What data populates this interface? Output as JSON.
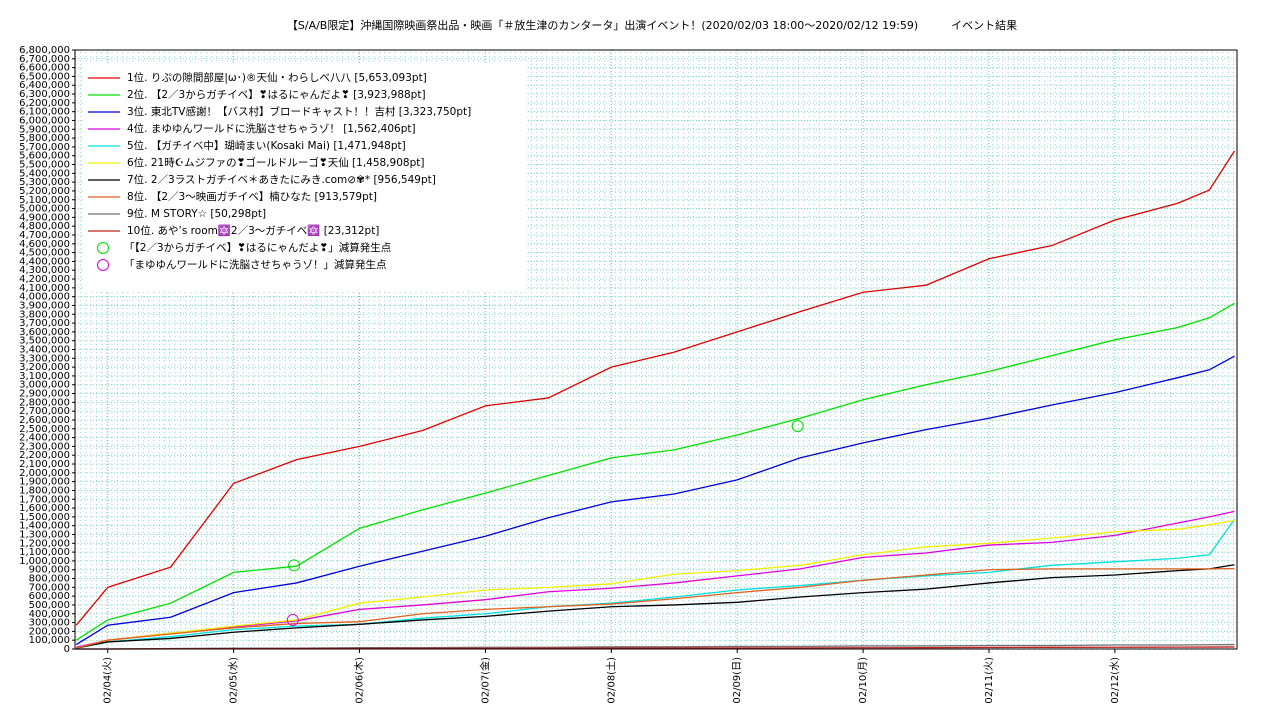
{
  "chart_data": {
    "type": "line",
    "title": "【S/A/B限定】沖縄国際映画祭出品・映画「＃放生津のカンタータ」出演イベント！(2020/02/03 18:00～2020/02/12 19:59)　　　イベント結果",
    "x": [
      3.75,
      4,
      4.5,
      5,
      5.5,
      6,
      6.5,
      7,
      7.5,
      8,
      8.5,
      9,
      9.5,
      10,
      10.5,
      11,
      11.5,
      12,
      12.5,
      12.75,
      12.95
    ],
    "xlim": [
      3.74,
      12.97
    ],
    "xticks": [
      {
        "value": 4,
        "label": "02/04(火)"
      },
      {
        "value": 5,
        "label": "02/05(水)"
      },
      {
        "value": 6,
        "label": "02/06(木)"
      },
      {
        "value": 7,
        "label": "02/07(金)"
      },
      {
        "value": 8,
        "label": "02/08(土)"
      },
      {
        "value": 9,
        "label": "02/09(日)"
      },
      {
        "value": 10,
        "label": "02/10(月)"
      },
      {
        "value": 11,
        "label": "02/11(火)"
      },
      {
        "value": 12,
        "label": "02/12(水)"
      }
    ],
    "ylim": [
      0,
      6800000
    ],
    "yticks": [
      0,
      {
        "value": 100000,
        "label": "100,000"
      },
      {
        "value": 200000,
        "label": "200,000"
      },
      {
        "value": 300000,
        "label": "300,000"
      },
      {
        "value": 400000,
        "label": "400,000"
      },
      {
        "value": 500000,
        "label": "500,000"
      },
      {
        "value": 600000,
        "label": "600,000"
      },
      {
        "value": 700000,
        "label": "700,000"
      },
      {
        "value": 800000,
        "label": "800,000"
      },
      {
        "value": 900000,
        "label": "900,000"
      },
      {
        "value": 1000000,
        "label": "1,000,000"
      },
      {
        "value": 1100000,
        "label": "1,100,000"
      },
      {
        "value": 1200000,
        "label": "1,200,000"
      },
      {
        "value": 1300000,
        "label": "1,300,000"
      },
      {
        "value": 1400000,
        "label": "1,400,000"
      },
      {
        "value": 1500000,
        "label": "1,500,000"
      },
      {
        "value": 1600000,
        "label": "1,600,000"
      },
      {
        "value": 1700000,
        "label": "1,700,000"
      },
      {
        "value": 1800000,
        "label": "1,800,000"
      },
      {
        "value": 1900000,
        "label": "1,900,000"
      },
      {
        "value": 2000000,
        "label": "2,000,000"
      },
      {
        "value": 2100000,
        "label": "2,100,000"
      },
      {
        "value": 2200000,
        "label": "2,200,000"
      },
      {
        "value": 2300000,
        "label": "2,300,000"
      },
      {
        "value": 2400000,
        "label": "2,400,000"
      },
      {
        "value": 2500000,
        "label": "2,500,000"
      },
      {
        "value": 2600000,
        "label": "2,600,000"
      },
      {
        "value": 2700000,
        "label": "2,700,000"
      },
      {
        "value": 2800000,
        "label": "2,800,000"
      },
      {
        "value": 2900000,
        "label": "2,900,000"
      },
      {
        "value": 3000000,
        "label": "3,000,000"
      },
      {
        "value": 3100000,
        "label": "3,100,000"
      },
      {
        "value": 3200000,
        "label": "3,200,000"
      },
      {
        "value": 3300000,
        "label": "3,300,000"
      },
      {
        "value": 3400000,
        "label": "3,400,000"
      },
      {
        "value": 3500000,
        "label": "3,500,000"
      },
      {
        "value": 3600000,
        "label": "3,600,000"
      },
      {
        "value": 3700000,
        "label": "3,700,000"
      },
      {
        "value": 3800000,
        "label": "3,800,000"
      },
      {
        "value": 3900000,
        "label": "3,900,000"
      },
      {
        "value": 4000000,
        "label": "4,000,000"
      },
      {
        "value": 4100000,
        "label": "4,100,000"
      },
      {
        "value": 4200000,
        "label": "4,200,000"
      },
      {
        "value": 4300000,
        "label": "4,300,000"
      },
      {
        "value": 4400000,
        "label": "4,400,000"
      },
      {
        "value": 4500000,
        "label": "4,500,000"
      },
      {
        "value": 4600000,
        "label": "4,600,000"
      },
      {
        "value": 4700000,
        "label": "4,700,000"
      },
      {
        "value": 4800000,
        "label": "4,800,000"
      },
      {
        "value": 4900000,
        "label": "4,900,000"
      },
      {
        "value": 5000000,
        "label": "5,000,000"
      },
      {
        "value": 5100000,
        "label": "5,100,000"
      },
      {
        "value": 5200000,
        "label": "5,200,000"
      },
      {
        "value": 5300000,
        "label": "5,300,000"
      },
      {
        "value": 5400000,
        "label": "5,400,000"
      },
      {
        "value": 5500000,
        "label": "5,500,000"
      },
      {
        "value": 5600000,
        "label": "5,600,000"
      },
      {
        "value": 5700000,
        "label": "5,700,000"
      },
      {
        "value": 5800000,
        "label": "5,800,000"
      },
      {
        "value": 5900000,
        "label": "5,900,000"
      },
      {
        "value": 6000000,
        "label": "6,000,000"
      },
      {
        "value": 6100000,
        "label": "6,100,000"
      },
      {
        "value": 6200000,
        "label": "6,200,000"
      },
      {
        "value": 6300000,
        "label": "6,300,000"
      },
      {
        "value": 6400000,
        "label": "6,400,000"
      },
      {
        "value": 6500000,
        "label": "6,500,000"
      },
      {
        "value": 6600000,
        "label": "6,600,000"
      },
      {
        "value": 6700000,
        "label": "6,700,000"
      },
      {
        "value": 6800000,
        "label": "6,800,000"
      }
    ],
    "grid": true,
    "legend": "upper-left",
    "series": [
      {
        "name": "1位. りぷの隙間部屋|ω･)®天仙・わらしべ八八 [5,653,093pt]",
        "color": "#e00000",
        "values": [
          270000,
          700000,
          930000,
          1880000,
          2150000,
          2300000,
          2480000,
          2760000,
          2850000,
          3200000,
          3370000,
          3600000,
          3830000,
          4050000,
          4130000,
          4430000,
          4580000,
          4870000,
          5060000,
          5210000,
          5653093
        ]
      },
      {
        "name": "2位. 【2／3からガチイベ】❣はるにゃんだよ❣ [3,923,988pt]",
        "color": "#00e000",
        "values": [
          100000,
          330000,
          520000,
          870000,
          940000,
          1370000,
          1580000,
          1770000,
          1970000,
          2170000,
          2260000,
          2430000,
          2620000,
          2830000,
          3000000,
          3150000,
          3330000,
          3510000,
          3650000,
          3760000,
          3923988
        ]
      },
      {
        "name": "3位. 東北TV感謝！【バス村】ブロードキャスト！！吉村 [3,323,750pt]",
        "color": "#0000e0",
        "values": [
          50000,
          270000,
          360000,
          640000,
          750000,
          940000,
          1110000,
          1280000,
          1490000,
          1670000,
          1760000,
          1920000,
          2170000,
          2340000,
          2490000,
          2620000,
          2770000,
          2910000,
          3080000,
          3170000,
          3323750
        ]
      },
      {
        "name": "4位. まゆゆんワールドに洗脳させちゃうゾ！ [1,562,406pt]",
        "color": "#e000e0",
        "values": [
          20000,
          100000,
          180000,
          250000,
          320000,
          450000,
          500000,
          560000,
          650000,
          690000,
          750000,
          830000,
          910000,
          1040000,
          1090000,
          1180000,
          1210000,
          1290000,
          1430000,
          1500000,
          1562406
        ]
      },
      {
        "name": "5位. 【ガチイベ中】瑚崎まい(Kosaki Mai) [1,471,948pt]",
        "color": "#00e0e0",
        "values": [
          10000,
          80000,
          140000,
          220000,
          260000,
          280000,
          350000,
          400000,
          480000,
          520000,
          590000,
          670000,
          720000,
          780000,
          830000,
          870000,
          950000,
          990000,
          1030000,
          1070000,
          1471948
        ]
      },
      {
        "name": "6位. 21時☪ムジファの❣ゴールドルーゴ❣天仙 [1,458,908pt]",
        "color": "#f0f000",
        "values": [
          10000,
          100000,
          180000,
          260000,
          330000,
          520000,
          590000,
          670000,
          700000,
          740000,
          850000,
          890000,
          950000,
          1070000,
          1160000,
          1200000,
          1260000,
          1330000,
          1360000,
          1410000,
          1458908
        ]
      },
      {
        "name": "7位. 2／3ラストガチイベ＊あきたにみき.com⊘✾* [956,549pt]",
        "color": "#000000",
        "values": [
          10000,
          80000,
          120000,
          190000,
          240000,
          280000,
          330000,
          370000,
          430000,
          480000,
          500000,
          530000,
          590000,
          640000,
          680000,
          750000,
          810000,
          840000,
          890000,
          910000,
          956549
        ]
      },
      {
        "name": "8位. 【2／3～映画ガチイベ】楠ひなた [913,579pt]",
        "color": "#e06020",
        "values": [
          10000,
          100000,
          170000,
          240000,
          290000,
          310000,
          400000,
          450000,
          480000,
          510000,
          570000,
          640000,
          700000,
          780000,
          840000,
          900000,
          910000,
          910000,
          910000,
          910000,
          913579
        ]
      },
      {
        "name": "9位. M STORY☆ [50,298pt]",
        "color": "#707070",
        "values": [
          0,
          0,
          5000,
          10000,
          10000,
          15000,
          15000,
          20000,
          20000,
          25000,
          25000,
          30000,
          30000,
          35000,
          35000,
          40000,
          40000,
          45000,
          45000,
          48000,
          50298
        ]
      },
      {
        "name": "10位. あや’s room🔯2／3～ガチイベ🔯 [23,312pt]",
        "color": "#c02020",
        "values": [
          0,
          0,
          2000,
          4000,
          5000,
          6000,
          7000,
          8000,
          9000,
          10000,
          11000,
          12000,
          13000,
          14000,
          15000,
          18000,
          19000,
          20000,
          21000,
          22000,
          23312
        ]
      }
    ],
    "markers": [
      {
        "name": "「【2／3からガチイベ】❣はるにゃんだよ❣」減算発生点",
        "color": "#00e000",
        "x": [
          5.48,
          9.48
        ],
        "values": [
          950000,
          2530000
        ]
      },
      {
        "name": "「まゆゆんワールドに洗脳させちゃうゾ！」減算発生点",
        "color": "#e000e0",
        "x": [
          5.47
        ],
        "values": [
          330000
        ]
      }
    ]
  }
}
